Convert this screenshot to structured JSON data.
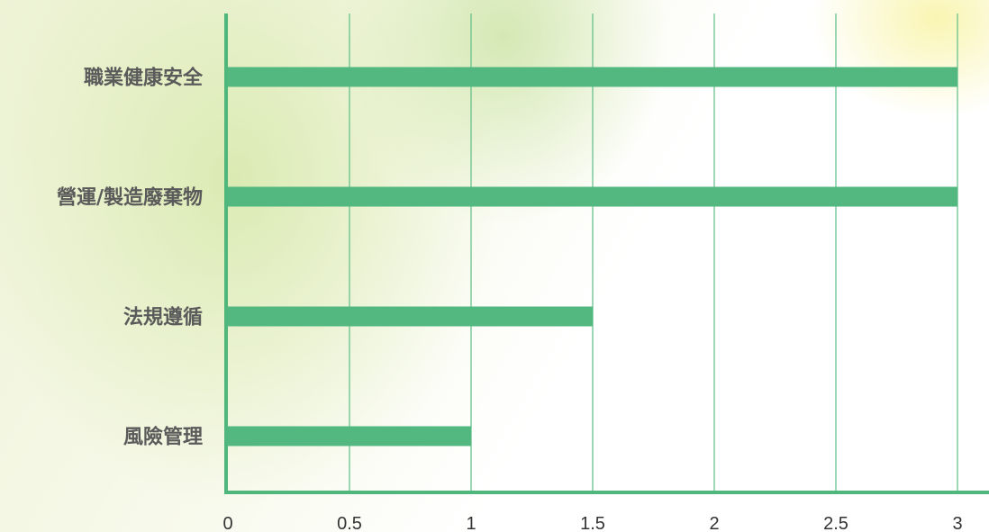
{
  "chart_data": {
    "type": "bar",
    "orientation": "horizontal",
    "categories": [
      "職業健康安全",
      "營運/製造廢棄物",
      "法規遵循",
      "風險管理"
    ],
    "values": [
      3,
      3,
      1.5,
      1
    ],
    "xlim": [
      0,
      3
    ],
    "xticks": [
      "0",
      "0.5",
      "1",
      "1.5",
      "2",
      "2.5",
      "3"
    ],
    "grid": true,
    "legend": "none",
    "colors": {
      "bar": "#52b880",
      "axis": "#4fb67c",
      "grid": "#5cbd86"
    }
  }
}
